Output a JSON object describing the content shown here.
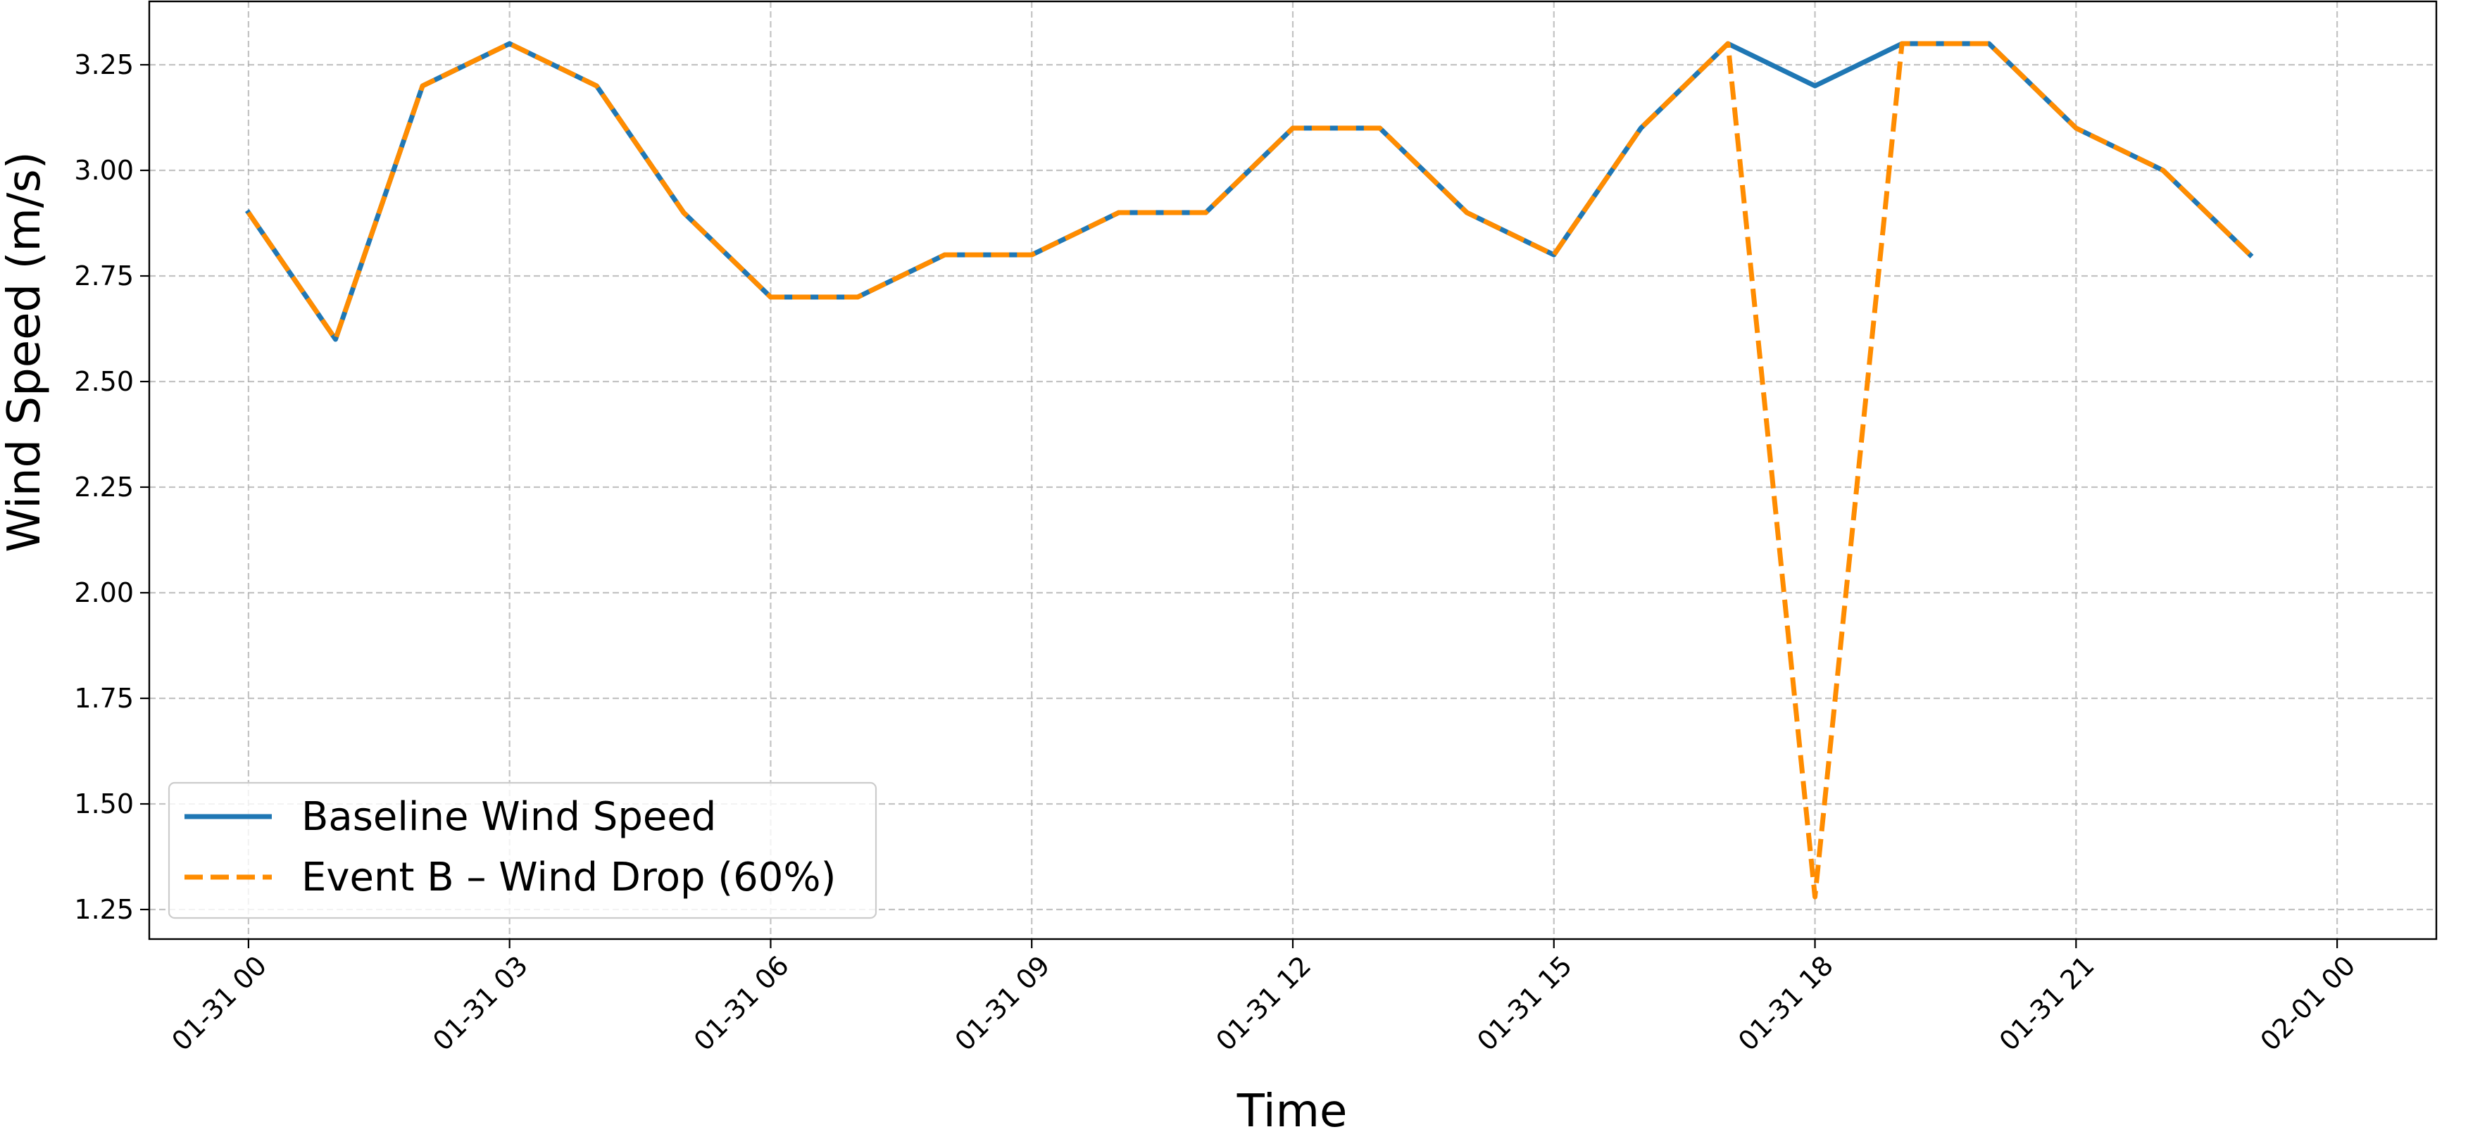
{
  "chart_data": {
    "type": "line",
    "title": "",
    "xlabel": "Time",
    "ylabel": "Wind Speed (m/s)",
    "x_start": "2024-01-31 00:00",
    "x_step_hours": 1,
    "x": [
      "01-31 00",
      "01-31 01",
      "01-31 02",
      "01-31 03",
      "01-31 04",
      "01-31 05",
      "01-31 06",
      "01-31 07",
      "01-31 08",
      "01-31 09",
      "01-31 10",
      "01-31 11",
      "01-31 12",
      "01-31 13",
      "01-31 14",
      "01-31 15",
      "01-31 16",
      "01-31 17",
      "01-31 18",
      "01-31 19",
      "01-31 20",
      "01-31 21",
      "01-31 22",
      "01-31 23"
    ],
    "xticks": [
      "01-31 00",
      "01-31 03",
      "01-31 06",
      "01-31 09",
      "01-31 12",
      "01-31 15",
      "01-31 18",
      "01-31 21",
      "02-01 00"
    ],
    "xlim_hours": [
      -1.14,
      25.14
    ],
    "ylim": [
      1.18,
      3.4
    ],
    "yticks": [
      "1.25",
      "1.50",
      "1.75",
      "2.00",
      "2.25",
      "2.50",
      "2.75",
      "3.00",
      "3.25"
    ],
    "grid": true,
    "legend_position": "lower-left",
    "series": [
      {
        "name": "Baseline Wind Speed",
        "color": "#1f77b4",
        "style": "solid",
        "values": [
          2.9,
          2.6,
          3.2,
          3.3,
          3.2,
          2.9,
          2.7,
          2.7,
          2.8,
          2.8,
          2.9,
          2.9,
          3.1,
          3.1,
          2.9,
          2.8,
          3.1,
          3.3,
          3.2,
          3.3,
          3.3,
          3.1,
          3.0,
          2.8
        ]
      },
      {
        "name": "Event B – Wind Drop (60%)",
        "color": "#ff8c00",
        "style": "dashed",
        "values": [
          2.9,
          2.6,
          3.2,
          3.3,
          3.2,
          2.9,
          2.7,
          2.7,
          2.8,
          2.8,
          2.9,
          2.9,
          3.1,
          3.1,
          2.9,
          2.8,
          3.1,
          3.3,
          1.28,
          3.3,
          3.3,
          3.1,
          3.0,
          2.8
        ]
      }
    ]
  }
}
